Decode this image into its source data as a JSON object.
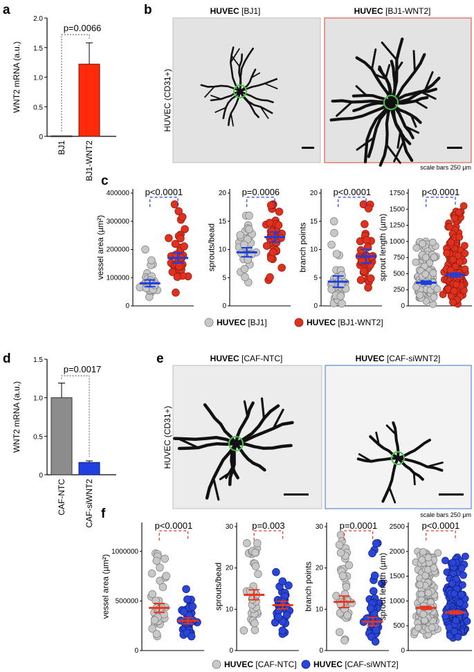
{
  "panel_labels": {
    "a": "a",
    "b": "b",
    "c": "c",
    "d": "d",
    "e": "e",
    "f": "f"
  },
  "panel_b": {
    "left_title_bold": "HUVEC",
    "left_title_rest": " [BJ1]",
    "right_title_bold": "HUVEC",
    "right_title_rest": " [BJ1-WNT2]",
    "side_label": "HUVEC (CD31+)",
    "scale_note": "scale bars 250 μm"
  },
  "panel_e": {
    "left_title_bold": "HUVEC",
    "left_title_rest": " [CAF-NTC]",
    "right_title_bold": "HUVEC",
    "right_title_rest": " [CAF-siWNT2]",
    "side_label": "HUVEC (CD31+)",
    "scale_note": "scale bars 250 μm"
  },
  "legend_c": {
    "a_bold": "HUVEC",
    "a_rest": " [BJ1]",
    "b_bold": "HUVEC",
    "b_rest": " [BJ1-WNT2]"
  },
  "legend_f": {
    "a_bold": "HUVEC",
    "a_rest": " [CAF-NTC]",
    "b_bold": "HUVEC",
    "b_rest": " [CAF-siWNT2]"
  },
  "colors": {
    "gray_dot": "#c8c8c8",
    "red_dot": "#e0301e",
    "blue_dot": "#2a45d8",
    "blue_bar": "#1f3fe0",
    "gray_bar": "#8c8c8c",
    "red_bar": "#ff2a0a",
    "blue_line": "#1c3ee0",
    "red_line": "#e8361e"
  },
  "chart_data": [
    {
      "id": "a",
      "type": "bar",
      "title": "",
      "ylabel": "WNT2 mRNA (a.u.)",
      "xlabel": "",
      "categories": [
        "BJ1",
        "BJ1-WNT2"
      ],
      "values": [
        0.01,
        1.22
      ],
      "errors": [
        0.0,
        0.36
      ],
      "ylim": [
        0,
        2.0
      ],
      "yticks": [
        "0",
        "0.5",
        "1.0",
        "1.5",
        "2.0"
      ],
      "pvalue": "p=0.0066"
    },
    {
      "id": "d",
      "type": "bar",
      "title": "",
      "ylabel": "WNT2 mRNA (a.u.)",
      "xlabel": "",
      "categories": [
        "CAF-NTC",
        "CAF-siWNT2"
      ],
      "values": [
        1.0,
        0.16
      ],
      "errors": [
        0.19,
        0.02
      ],
      "ylim": [
        0,
        1.5
      ],
      "yticks": [
        "0",
        "0.5",
        "1.0",
        "1.5"
      ],
      "pvalue": "p=0.0017"
    },
    {
      "id": "c1",
      "type": "scatter",
      "ylabel": "vessel area (µm²)",
      "pvalue": "p<0.0001",
      "ylim": [
        0,
        400000
      ],
      "yticks": [
        "0",
        "100000",
        "200000",
        "300000",
        "400000"
      ],
      "groups": [
        {
          "name": "HUVEC [BJ1]",
          "mean": 80000,
          "sem": 12000,
          "n": 36,
          "min": 20000,
          "max": 200000
        },
        {
          "name": "HUVEC [BJ1-WNT2]",
          "mean": 170000,
          "sem": 18000,
          "n": 40,
          "min": 40000,
          "max": 360000
        }
      ]
    },
    {
      "id": "c2",
      "type": "scatter",
      "ylabel": "sprouts/bead",
      "pvalue": "p=0.0006",
      "ylim": [
        0,
        20
      ],
      "yticks": [
        "0",
        "5",
        "10",
        "15",
        "20"
      ],
      "groups": [
        {
          "name": "HUVEC [BJ1]",
          "mean": 9.5,
          "sem": 0.8,
          "n": 34,
          "min": 4,
          "max": 16
        },
        {
          "name": "HUVEC [BJ1-WNT2]",
          "mean": 12.2,
          "sem": 0.9,
          "n": 38,
          "min": 4,
          "max": 18
        }
      ]
    },
    {
      "id": "c3",
      "type": "scatter",
      "ylabel": "branch points",
      "pvalue": "p<0.0001",
      "ylim": [
        0,
        20
      ],
      "yticks": [
        "0",
        "5",
        "10",
        "15",
        "20"
      ],
      "groups": [
        {
          "name": "HUVEC [BJ1]",
          "mean": 4.3,
          "sem": 1.0,
          "n": 34,
          "min": 0,
          "max": 15
        },
        {
          "name": "HUVEC [BJ1-WNT2]",
          "mean": 8.8,
          "sem": 1.2,
          "n": 36,
          "min": 2,
          "max": 18
        }
      ]
    },
    {
      "id": "c4",
      "type": "scatter",
      "ylabel": "sprout length (µm)",
      "pvalue": "p<0.0001",
      "ylim": [
        0,
        1750
      ],
      "yticks": [
        "0",
        "250",
        "500",
        "750",
        "1000",
        "1250",
        "1500",
        "1750"
      ],
      "groups": [
        {
          "name": "HUVEC [BJ1]",
          "mean": 360,
          "sem": 25,
          "n": 170,
          "min": 20,
          "max": 1000
        },
        {
          "name": "HUVEC [BJ1-WNT2]",
          "mean": 480,
          "sem": 30,
          "n": 230,
          "min": 20,
          "max": 1550
        }
      ]
    },
    {
      "id": "f1",
      "type": "scatter",
      "ylabel": "vessel area (µm²)",
      "pvalue": "p<0.0001",
      "ylim": [
        0,
        1250000
      ],
      "yticks": [
        "0",
        "500000",
        "1000000"
      ],
      "groups": [
        {
          "name": "HUVEC [CAF-NTC]",
          "mean": 430000,
          "sem": 45000,
          "n": 40,
          "min": 80000,
          "max": 980000
        },
        {
          "name": "HUVEC [CAF-siWNT2]",
          "mean": 300000,
          "sem": 30000,
          "n": 36,
          "min": 120000,
          "max": 620000
        }
      ]
    },
    {
      "id": "f2",
      "type": "scatter",
      "ylabel": "sprouts/bead",
      "pvalue": "p=0.003",
      "ylim": [
        0,
        30
      ],
      "yticks": [
        "0",
        "10",
        "20",
        "30"
      ],
      "groups": [
        {
          "name": "HUVEC [CAF-NTC]",
          "mean": 13.5,
          "sem": 1.2,
          "n": 40,
          "min": 2,
          "max": 26
        },
        {
          "name": "HUVEC [CAF-siWNT2]",
          "mean": 11.0,
          "sem": 0.9,
          "n": 40,
          "min": 3,
          "max": 19
        }
      ]
    },
    {
      "id": "f3",
      "type": "scatter",
      "ylabel": "branch points",
      "pvalue": "p=0.0001",
      "ylim": [
        0,
        30
      ],
      "yticks": [
        "0",
        "10",
        "20",
        "30"
      ],
      "groups": [
        {
          "name": "HUVEC [CAF-NTC]",
          "mean": 11.8,
          "sem": 1.4,
          "n": 42,
          "min": 0,
          "max": 28
        },
        {
          "name": "HUVEC [CAF-siWNT2]",
          "mean": 7.0,
          "sem": 1.0,
          "n": 40,
          "min": 0,
          "max": 26
        }
      ]
    },
    {
      "id": "f4",
      "type": "scatter",
      "ylabel": "sprout length (µm)",
      "pvalue": "p<0.0001",
      "ylim": [
        0,
        2500
      ],
      "yticks": [
        "0",
        "500",
        "1000",
        "1500",
        "2000",
        "2500"
      ],
      "groups": [
        {
          "name": "HUVEC [CAF-NTC]",
          "mean": 860,
          "sem": 30,
          "n": 260,
          "min": 200,
          "max": 2000
        },
        {
          "name": "HUVEC [CAF-siWNT2]",
          "mean": 770,
          "sem": 30,
          "n": 280,
          "min": 150,
          "max": 1900
        }
      ]
    }
  ]
}
